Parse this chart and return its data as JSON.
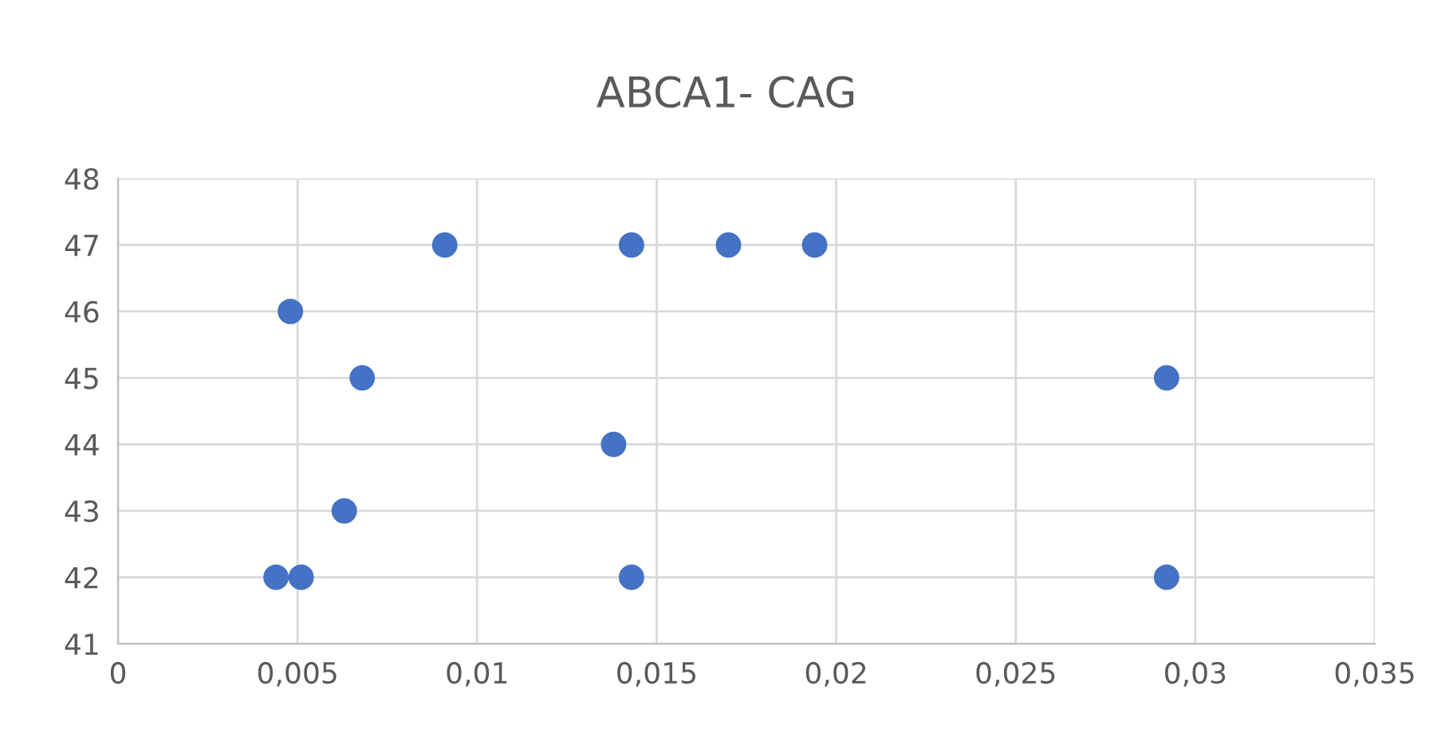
{
  "chart_data": {
    "type": "scatter",
    "title": "ABCA1- CAG",
    "x": [
      0.0044,
      0.0051,
      0.0143,
      0.0292,
      0.0063,
      0.0138,
      0.0068,
      0.0292,
      0.0048,
      0.0091,
      0.0143,
      0.017,
      0.0194
    ],
    "values": [
      42,
      42,
      42,
      42,
      43,
      44,
      45,
      45,
      46,
      47,
      47,
      47,
      47
    ],
    "color": "#4472c4",
    "marker": "circle",
    "grid": true,
    "xlim": [
      0,
      0.035
    ],
    "xticks": [
      0,
      {
        "value": 0.005,
        "label": "0,005"
      },
      {
        "value": 0.01,
        "label": "0,01"
      },
      {
        "value": 0.015,
        "label": "0,015"
      },
      {
        "value": 0.02,
        "label": "0,02"
      },
      {
        "value": 0.025,
        "label": "0,025"
      },
      {
        "value": 0.03,
        "label": "0,03"
      },
      {
        "value": 0.035,
        "label": "0,035"
      }
    ],
    "ylim": [
      41,
      48
    ],
    "yticks": [
      41,
      42,
      43,
      44,
      45,
      46,
      47,
      48
    ]
  }
}
